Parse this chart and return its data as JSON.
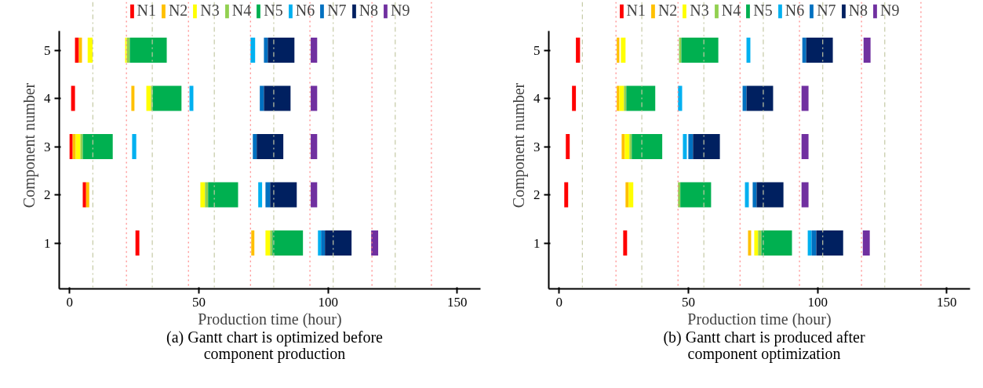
{
  "chart_data": [
    {
      "type": "bar",
      "orientation": "horizontal",
      "xlabel": "Production time (hour)",
      "ylabel": "Component number",
      "annotations": [
        "(a) Gantt chart is optimized before component production"
      ],
      "categories": [
        "5",
        "4",
        "3",
        "2",
        "1"
      ],
      "xlim": [
        -4,
        159
      ],
      "xticks": [
        0,
        50,
        100,
        150
      ],
      "grid": false,
      "legend": "top",
      "ref_lines": [
        {
          "axis": "x",
          "value": 22,
          "color": "#ff8080",
          "line_style": "dotted"
        },
        {
          "axis": "x",
          "value": 46,
          "color": "#ff8080",
          "line_style": "dotted"
        },
        {
          "axis": "x",
          "value": 70,
          "color": "#ff8080",
          "line_style": "dotted"
        },
        {
          "axis": "x",
          "value": 93,
          "color": "#ff8080",
          "line_style": "dotted"
        },
        {
          "axis": "x",
          "value": 117,
          "color": "#ff8080",
          "line_style": "dotted"
        },
        {
          "axis": "x",
          "value": 140,
          "color": "#ff8080",
          "line_style": "dotted"
        },
        {
          "axis": "x",
          "value": 9,
          "color": "#c4c9a4",
          "line_style": "dashdot"
        },
        {
          "axis": "x",
          "value": 32,
          "color": "#c4c9a4",
          "line_style": "dashdot"
        },
        {
          "axis": "x",
          "value": 56,
          "color": "#c4c9a4",
          "line_style": "dashdot"
        },
        {
          "axis": "x",
          "value": 79,
          "color": "#c4c9a4",
          "line_style": "dashdot"
        },
        {
          "axis": "x",
          "value": 102,
          "color": "#c4c9a4",
          "line_style": "dashdot"
        },
        {
          "axis": "x",
          "value": 126,
          "color": "#c4c9a4",
          "line_style": "dashdot"
        }
      ],
      "series": [
        {
          "name": "N1",
          "color": "#ff0000",
          "base": [
            2.1,
            0.6,
            0,
            5.1,
            25.5
          ],
          "values": [
            1.5,
            1.5,
            1.2,
            1.3,
            1.5
          ]
        },
        {
          "name": "N2",
          "color": "#ffc000",
          "base": [
            3.6,
            23.9,
            1.2,
            6.4,
            70.3
          ],
          "values": [
            1.2,
            1.2,
            1.2,
            1.2,
            1.2
          ]
        },
        {
          "name": "N3",
          "color": "#ffff00",
          "base": [
            7.0,
            29.7,
            2.4,
            50.6,
            75.8
          ],
          "values": [
            1.9,
            1.8,
            1.8,
            1.8,
            1.8
          ]
        },
        {
          "name": "N4",
          "color": "#92d050",
          "base": [
            22.1,
            31.5,
            4.2,
            52.4,
            77.6
          ],
          "values": [
            1.2,
            0.6,
            0.9,
            1.2,
            0.9
          ]
        },
        {
          "name": "N5",
          "color": "#00b050",
          "base": [
            23.3,
            32.1,
            5.1,
            53.6,
            78.5
          ],
          "values": [
            14.3,
            11.2,
            11.6,
            11.6,
            11.8
          ]
        },
        {
          "name": "N6",
          "color": "#00b0f0",
          "base": [
            70,
            46.4,
            24.2,
            73,
            96.1
          ],
          "values": [
            1.8,
            1.5,
            1.6,
            1.5,
            1.2
          ]
        },
        {
          "name": "N7",
          "color": "#0070c0",
          "base": [
            75.2,
            73.6,
            70.9,
            75.8,
            97.3
          ],
          "values": [
            1.5,
            1.6,
            1.5,
            1.8,
            1.5
          ]
        },
        {
          "name": "N8",
          "color": "#002060",
          "base": [
            76.7,
            75.2,
            72.4,
            77.6,
            98.8
          ],
          "values": [
            10.3,
            10.3,
            10.3,
            10.3,
            10.3
          ]
        },
        {
          "name": "N9",
          "color": "#7030a0",
          "base": [
            93.3,
            93.3,
            93.3,
            93.3,
            116.7
          ],
          "values": [
            2.5,
            2.5,
            2.5,
            2.5,
            2.7
          ]
        },
        {
          "color": "#ffff00",
          "base": [
            21.5,
            null,
            null,
            null,
            null
          ],
          "values": [
            0.6,
            null,
            null,
            null,
            null
          ]
        }
      ]
    },
    {
      "type": "bar",
      "orientation": "horizontal",
      "xlabel": "Production time (hour)",
      "ylabel": "Component number",
      "annotations": [
        "(b) Gantt chart is produced after component optimization"
      ],
      "categories": [
        "5",
        "4",
        "3",
        "2",
        "1"
      ],
      "xlim": [
        -4,
        159
      ],
      "xticks": [
        0,
        50,
        100,
        150
      ],
      "grid": false,
      "legend": "top",
      "ref_lines": [
        {
          "axis": "x",
          "value": 22,
          "color": "#ff8080",
          "line_style": "dotted"
        },
        {
          "axis": "x",
          "value": 46,
          "color": "#ff8080",
          "line_style": "dotted"
        },
        {
          "axis": "x",
          "value": 70,
          "color": "#ff8080",
          "line_style": "dotted"
        },
        {
          "axis": "x",
          "value": 93,
          "color": "#ff8080",
          "line_style": "dotted"
        },
        {
          "axis": "x",
          "value": 117,
          "color": "#ff8080",
          "line_style": "dotted"
        },
        {
          "axis": "x",
          "value": 140,
          "color": "#ff8080",
          "line_style": "dotted"
        },
        {
          "axis": "x",
          "value": 9,
          "color": "#c4c9a4",
          "line_style": "dashdot"
        },
        {
          "axis": "x",
          "value": 32,
          "color": "#c4c9a4",
          "line_style": "dashdot"
        },
        {
          "axis": "x",
          "value": 56,
          "color": "#c4c9a4",
          "line_style": "dashdot"
        },
        {
          "axis": "x",
          "value": 79,
          "color": "#c4c9a4",
          "line_style": "dashdot"
        },
        {
          "axis": "x",
          "value": 102,
          "color": "#c4c9a4",
          "line_style": "dashdot"
        },
        {
          "axis": "x",
          "value": 126,
          "color": "#c4c9a4",
          "line_style": "dashdot"
        }
      ],
      "series": [
        {
          "name": "N1",
          "color": "#ff0000",
          "base": [
            6.5,
            5,
            2.6,
            2,
            24.8
          ],
          "values": [
            1.6,
            1.5,
            1.5,
            1.5,
            1.5
          ]
        },
        {
          "name": "N2",
          "color": "#ffc000",
          "base": [
            22.3,
            22.3,
            24.2,
            25.7,
            73.1
          ],
          "values": [
            1.0,
            1.0,
            1.2,
            1.2,
            1.2
          ]
        },
        {
          "name": "N3",
          "color": "#ffff00",
          "base": [
            23.9,
            23.3,
            25.4,
            26.9,
            75.5
          ],
          "values": [
            1.8,
            1.8,
            1.8,
            1.8,
            1.5
          ]
        },
        {
          "name": "N4",
          "color": "#92d050",
          "base": [
            46.4,
            25.1,
            27.2,
            46,
            77
          ],
          "values": [
            0.9,
            0.9,
            0.9,
            0.9,
            1.3
          ]
        },
        {
          "name": "N5",
          "color": "#00b050",
          "base": [
            47.3,
            26,
            28.1,
            46.9,
            78.3
          ],
          "values": [
            14.3,
            11.2,
            11.8,
            11.9,
            11.8
          ]
        },
        {
          "name": "N6",
          "color": "#00b0f0",
          "base": [
            72.5,
            46,
            47.9,
            71.9,
            96.2
          ],
          "values": [
            1.5,
            1.6,
            1.5,
            1.5,
            1.5
          ]
        },
        {
          "name": "N7",
          "color": "#0070c0",
          "base": [
            94.1,
            71,
            50,
            74.9,
            97.7
          ],
          "values": [
            1.5,
            1.5,
            1.8,
            1.5,
            1.8
          ]
        },
        {
          "name": "N8",
          "color": "#002060",
          "base": [
            95.6,
            72.5,
            51.8,
            76.4,
            99.5
          ],
          "values": [
            10.3,
            10.3,
            10.4,
            10.4,
            10.4
          ]
        },
        {
          "name": "N9",
          "color": "#7030a0",
          "base": [
            117.8,
            93.8,
            93.8,
            93.8,
            117.5
          ],
          "values": [
            2.7,
            2.7,
            2.7,
            2.7,
            2.7
          ]
        }
      ]
    }
  ]
}
